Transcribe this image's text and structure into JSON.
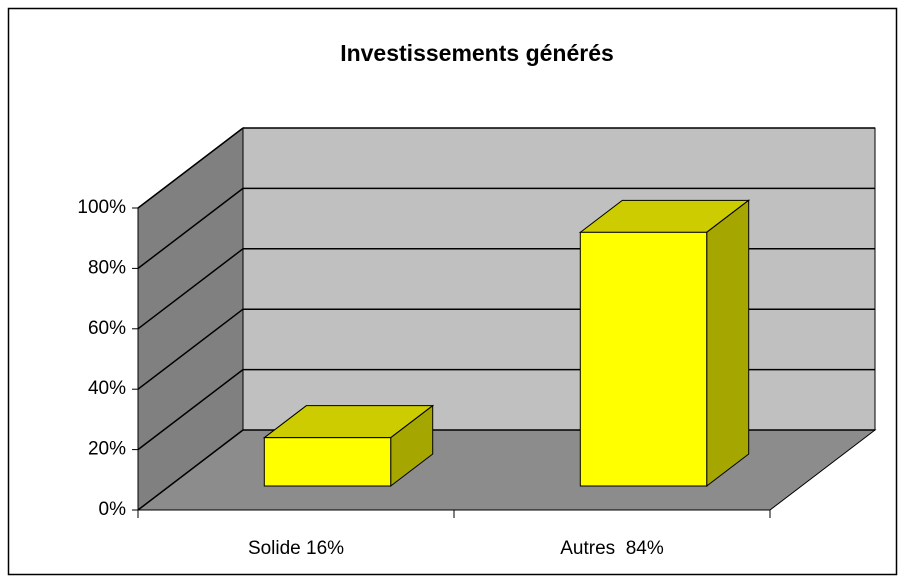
{
  "chart_data": {
    "type": "bar3d",
    "title": "Investissements générés",
    "categories": [
      "Solide 16%",
      "Autres  84%"
    ],
    "values": [
      16,
      84
    ],
    "color": "#ffff00",
    "ylim": [
      0,
      100
    ],
    "yticks": [
      {
        "value": 0,
        "label": "0%"
      },
      {
        "value": 20,
        "label": "20%"
      },
      {
        "value": 40,
        "label": "40%"
      },
      {
        "value": 60,
        "label": "60%"
      },
      {
        "value": 80,
        "label": "80%"
      },
      {
        "value": 100,
        "label": "100%"
      }
    ],
    "grid": true
  }
}
